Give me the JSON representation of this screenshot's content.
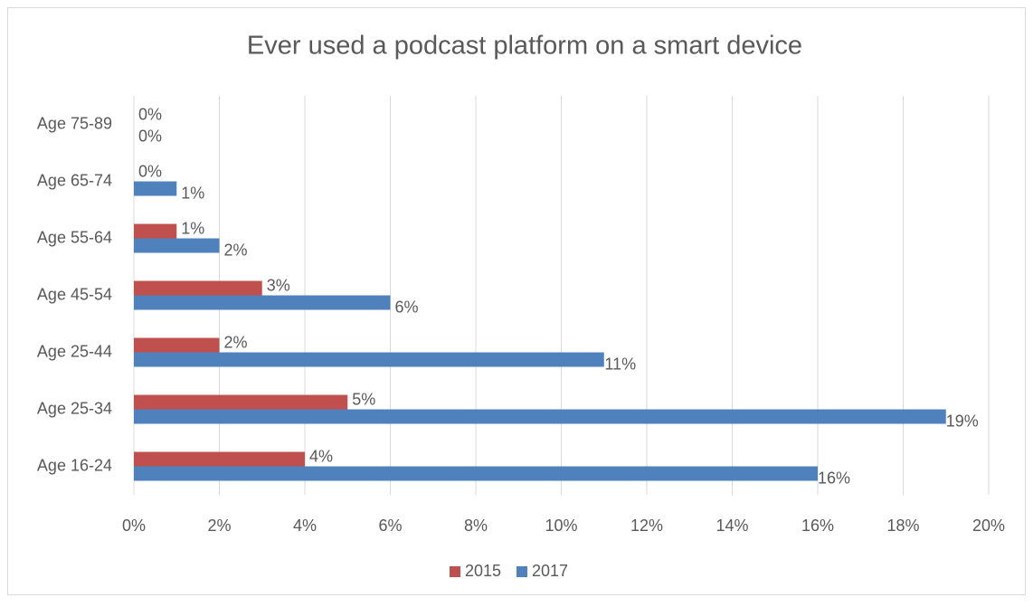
{
  "chart_data": {
    "type": "hbar",
    "title": "Ever used a podcast platform on a smart device",
    "categories": [
      "Age 16-24",
      "Age 25-34",
      "Age 25-44",
      "Age 45-54",
      "Age 55-64",
      "Age 65-74",
      "Age 75-89"
    ],
    "series": [
      {
        "name": "2015",
        "color": "#c0504d",
        "values": [
          4,
          5,
          2,
          3,
          1,
          0,
          0
        ],
        "value_labels": [
          "4%",
          "5%",
          "2%",
          "3%",
          "1%",
          "0%",
          "0%"
        ]
      },
      {
        "name": "2017",
        "color": "#4f81bd",
        "values": [
          16,
          19,
          11,
          6,
          2,
          1,
          0
        ],
        "value_labels": [
          "16%",
          "19%",
          "11%",
          "6%",
          "2%",
          "1%",
          "0%"
        ]
      }
    ],
    "xlim": [
      0,
      20
    ],
    "xticks": [
      {
        "value": 0,
        "label": "0%"
      },
      {
        "value": 2,
        "label": "2%"
      },
      {
        "value": 4,
        "label": "4%"
      },
      {
        "value": 6,
        "label": "6%"
      },
      {
        "value": 8,
        "label": "8%"
      },
      {
        "value": 10,
        "label": "10%"
      },
      {
        "value": 12,
        "label": "12%"
      },
      {
        "value": 14,
        "label": "14%"
      },
      {
        "value": 16,
        "label": "16%"
      },
      {
        "value": 18,
        "label": "18%"
      },
      {
        "value": 20,
        "label": "20%"
      }
    ],
    "grid": true,
    "legend": "bottom"
  }
}
